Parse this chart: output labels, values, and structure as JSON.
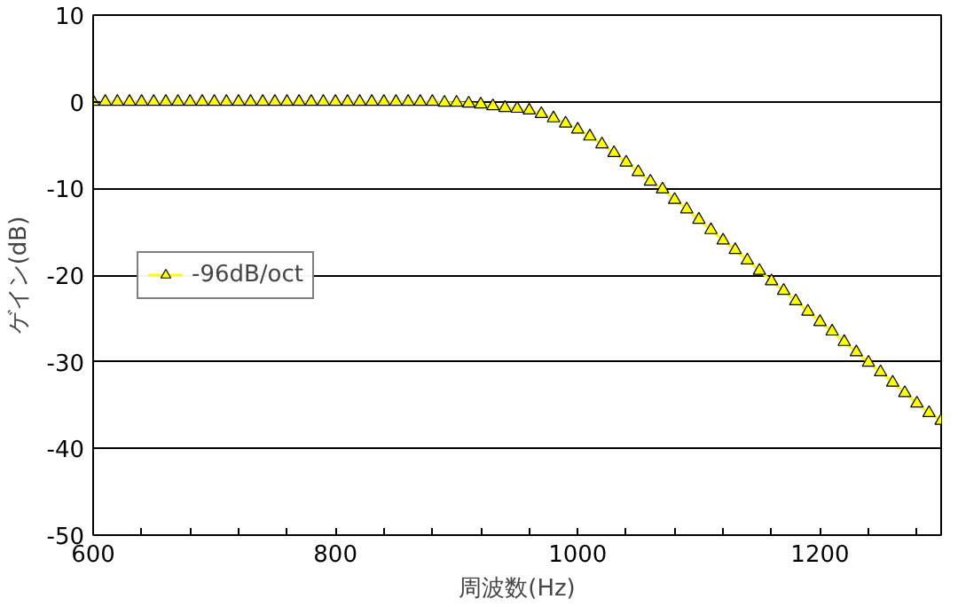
{
  "chart_data": {
    "type": "line",
    "xlabel": "周波数(Hz)",
    "ylabel": "ゲイン(dB)",
    "x": [
      600,
      610,
      620,
      630,
      640,
      650,
      660,
      670,
      680,
      690,
      700,
      710,
      720,
      730,
      740,
      750,
      760,
      770,
      780,
      790,
      800,
      810,
      820,
      830,
      840,
      850,
      860,
      870,
      880,
      890,
      900,
      910,
      920,
      930,
      940,
      950,
      960,
      970,
      980,
      990,
      1000,
      1010,
      1020,
      1030,
      1040,
      1050,
      1060,
      1070,
      1080,
      1090,
      1100,
      1110,
      1120,
      1130,
      1140,
      1150,
      1160,
      1170,
      1180,
      1190,
      1200,
      1210,
      1220,
      1230,
      1240,
      1250,
      1260,
      1270,
      1280,
      1290,
      1300
    ],
    "series": [
      {
        "name": "-96dB/oct",
        "color": "#ffff00",
        "values": [
          0,
          0,
          0,
          0,
          0,
          0,
          0,
          0,
          0,
          0,
          0,
          0,
          0,
          0,
          0,
          0,
          0,
          0,
          0,
          0,
          0,
          0,
          0,
          0,
          0,
          0,
          0,
          0,
          0,
          -0.1,
          -0.1,
          -0.2,
          -0.3,
          -0.5,
          -0.7,
          -0.8,
          -1.0,
          -1.4,
          -1.9,
          -2.5,
          -3.2,
          -4.0,
          -4.9,
          -5.9,
          -7.0,
          -8.1,
          -9.2,
          -10.1,
          -11.3,
          -12.4,
          -13.6,
          -14.8,
          -16.0,
          -17.1,
          -18.3,
          -19.5,
          -20.7,
          -21.8,
          -23.0,
          -24.2,
          -25.4,
          -26.5,
          -27.7,
          -28.9,
          -30.1,
          -31.2,
          -32.4,
          -33.6,
          -34.8,
          -35.9,
          -36.8
        ]
      }
    ],
    "xlim": [
      600,
      1300
    ],
    "ylim": [
      -50,
      10
    ],
    "xticks": [
      600,
      {
        "value": 640,
        "label": null
      },
      {
        "value": 680,
        "label": null
      },
      {
        "value": 720,
        "label": null
      },
      {
        "value": 760,
        "label": null
      },
      800,
      {
        "value": 840,
        "label": null
      },
      {
        "value": 880,
        "label": null
      },
      {
        "value": 920,
        "label": null
      },
      {
        "value": 960,
        "label": null
      },
      1000,
      {
        "value": 1040,
        "label": null
      },
      {
        "value": 1080,
        "label": null
      },
      {
        "value": 1120,
        "label": null
      },
      {
        "value": 1160,
        "label": null
      },
      1200,
      {
        "value": 1240,
        "label": null
      },
      {
        "value": 1280,
        "label": null
      }
    ],
    "yticks": [
      -50,
      -40,
      -30,
      -20,
      -10,
      0,
      10
    ],
    "grid": "y",
    "legend": "left",
    "marker": "triangle",
    "line_style": "solid"
  }
}
